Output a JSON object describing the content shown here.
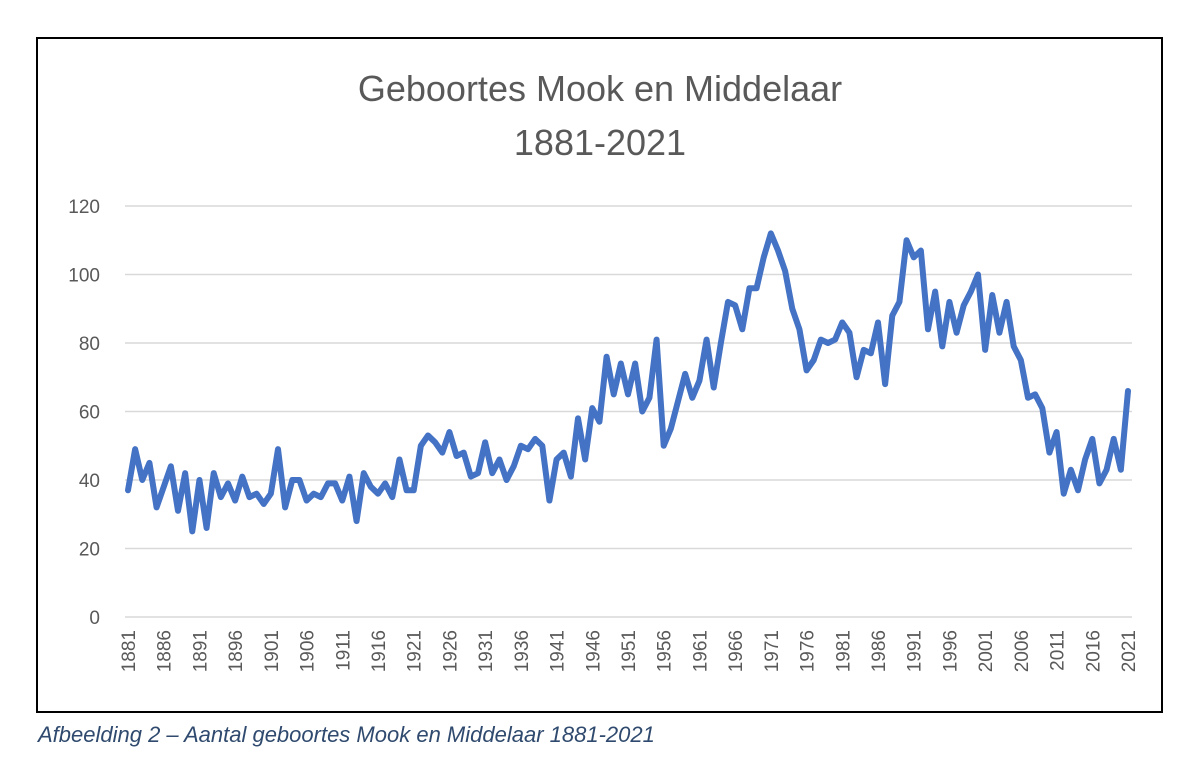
{
  "caption": "Afbeelding 2 – Aantal geboortes Mook en Middelaar 1881-2021",
  "chart_data": {
    "type": "line",
    "title": [
      "Geboortes Mook en Middelaar",
      "1881-2021"
    ],
    "xlabel": "",
    "ylabel": "",
    "ylim": [
      0,
      120
    ],
    "yticks": [
      0,
      20,
      40,
      60,
      80,
      100,
      120
    ],
    "xtick_step": 5,
    "grid": true,
    "legend": "none",
    "color": "#4472C4",
    "x": [
      1881,
      1882,
      1883,
      1884,
      1885,
      1886,
      1887,
      1888,
      1889,
      1890,
      1891,
      1892,
      1893,
      1894,
      1895,
      1896,
      1897,
      1898,
      1899,
      1900,
      1901,
      1902,
      1903,
      1904,
      1905,
      1906,
      1907,
      1908,
      1909,
      1910,
      1911,
      1912,
      1913,
      1914,
      1915,
      1916,
      1917,
      1918,
      1919,
      1920,
      1921,
      1922,
      1923,
      1924,
      1925,
      1926,
      1927,
      1928,
      1929,
      1930,
      1931,
      1932,
      1933,
      1934,
      1935,
      1936,
      1937,
      1938,
      1939,
      1940,
      1941,
      1942,
      1943,
      1944,
      1945,
      1946,
      1947,
      1948,
      1949,
      1950,
      1951,
      1952,
      1953,
      1954,
      1955,
      1956,
      1957,
      1958,
      1959,
      1960,
      1961,
      1962,
      1963,
      1964,
      1965,
      1966,
      1967,
      1968,
      1969,
      1970,
      1971,
      1972,
      1973,
      1974,
      1975,
      1976,
      1977,
      1978,
      1979,
      1980,
      1981,
      1982,
      1983,
      1984,
      1985,
      1986,
      1987,
      1988,
      1989,
      1990,
      1991,
      1992,
      1993,
      1994,
      1995,
      1996,
      1997,
      1998,
      1999,
      2000,
      2001,
      2002,
      2003,
      2004,
      2005,
      2006,
      2007,
      2008,
      2009,
      2010,
      2011,
      2012,
      2013,
      2014,
      2015,
      2016,
      2017,
      2018,
      2019,
      2020,
      2021
    ],
    "values": [
      37,
      49,
      40,
      45,
      32,
      38,
      44,
      31,
      42,
      25,
      40,
      26,
      42,
      35,
      39,
      34,
      41,
      35,
      36,
      33,
      36,
      49,
      32,
      40,
      40,
      34,
      36,
      35,
      39,
      39,
      34,
      41,
      28,
      42,
      38,
      36,
      39,
      35,
      46,
      37,
      37,
      50,
      53,
      51,
      48,
      54,
      47,
      48,
      41,
      42,
      51,
      42,
      46,
      40,
      44,
      50,
      49,
      52,
      50,
      34,
      46,
      48,
      41,
      58,
      46,
      61,
      57,
      76,
      65,
      74,
      65,
      74,
      60,
      64,
      81,
      50,
      55,
      63,
      71,
      64,
      69,
      81,
      67,
      80,
      92,
      91,
      84,
      96,
      96,
      105,
      112,
      107,
      101,
      90,
      84,
      72,
      75,
      81,
      80,
      81,
      86,
      83,
      70,
      78,
      77,
      86,
      68,
      88,
      92,
      110,
      105,
      107,
      84,
      95,
      79,
      92,
      83,
      91,
      95,
      100,
      78,
      94,
      83,
      92,
      79,
      75,
      64,
      65,
      61,
      48,
      54,
      36,
      43,
      37,
      46,
      52,
      39,
      43,
      52,
      43,
      66
    ]
  }
}
